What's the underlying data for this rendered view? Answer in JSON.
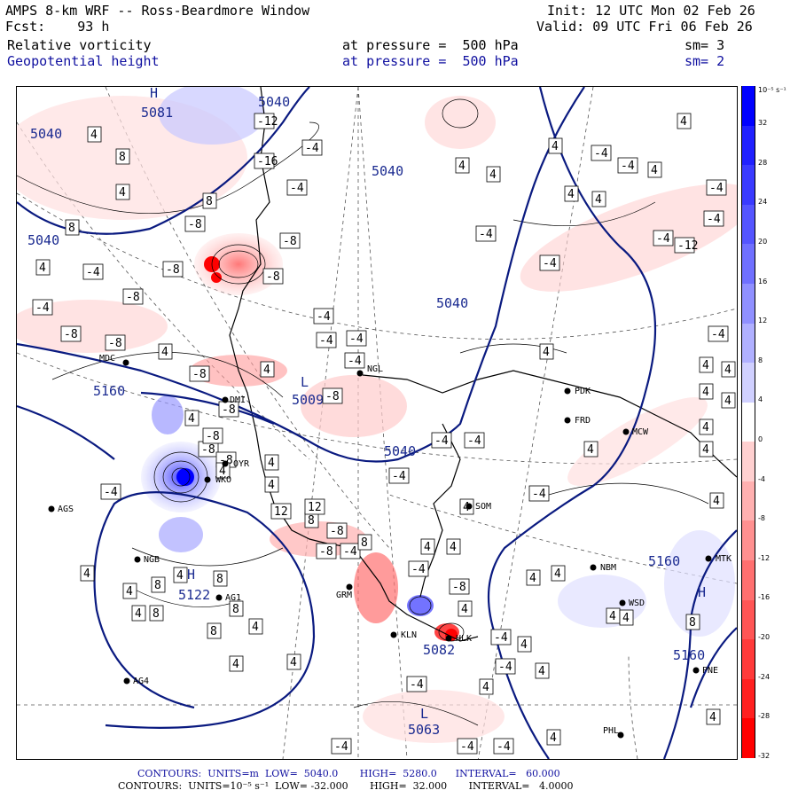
{
  "header": {
    "line1_left": "AMPS 8-km WRF -- Ross-Beardmore Window",
    "line1_right": "Init: 12 UTC Mon 02 Feb 26",
    "line2_left": "Fcst:    93 h",
    "line2_right": "Valid: 09 UTC Fri 06 Feb 26",
    "field1": "Relative vorticity",
    "field1_level": "at pressure =  500 hPa",
    "field1_sm": "sm= 3",
    "field2": "Geopotential height",
    "field2_level": "at pressure =  500 hPa",
    "field2_sm": "sm= 2"
  },
  "colorbar": {
    "unit": "10⁻⁵ s⁻¹",
    "ticks": [
      "32",
      "28",
      "24",
      "20",
      "16",
      "12",
      "8",
      "4",
      "0",
      "-4",
      "-8",
      "-12",
      "-16",
      "-20",
      "-24",
      "-28",
      "-32"
    ],
    "colors": [
      "#0000ff",
      "#2020ff",
      "#3a3aff",
      "#5555ff",
      "#7070ff",
      "#9090ff",
      "#b0b0ff",
      "#d0d0ff",
      "#ffffff",
      "#ffd0d0",
      "#ffb0b0",
      "#ff9090",
      "#ff7070",
      "#ff5555",
      "#ff3a3a",
      "#ff2020",
      "#ff0000"
    ]
  },
  "stations": [
    {
      "id": "MDC"
    },
    {
      "id": "NGL"
    },
    {
      "id": "PDK"
    },
    {
      "id": "FRD"
    },
    {
      "id": "MCW"
    },
    {
      "id": "AGS"
    },
    {
      "id": "NGB"
    },
    {
      "id": "DMI"
    },
    {
      "id": "SOM"
    },
    {
      "id": "AG1"
    },
    {
      "id": "GRM"
    },
    {
      "id": "KLN"
    },
    {
      "id": "HLK"
    },
    {
      "id": "NBM"
    },
    {
      "id": "MTK"
    },
    {
      "id": "WSD"
    },
    {
      "id": "AG4"
    },
    {
      "id": "PNE"
    },
    {
      "id": "PHL"
    },
    {
      "id": "WKO"
    },
    {
      "id": "OYR"
    }
  ],
  "height_labels": [
    "5081",
    "5040",
    "5040",
    "5040",
    "5040",
    "5009",
    "5040",
    "5040",
    "5122",
    "5082",
    "5160",
    "5160",
    "5063",
    "5160"
  ],
  "highs_lows": [
    "H",
    "L",
    "H",
    "L",
    "H"
  ],
  "footer": {
    "line1": "CONTOURS:  UNITS=m  LOW=  5040.0       HIGH=  5280.0      INTERVAL=   60.000",
    "line2": "CONTOURS:  UNITS=10⁻⁵ s⁻¹  LOW= -32.000       HIGH=  32.000       INTERVAL=   4.0000"
  },
  "colors": {
    "height_contour": "#0a1a80",
    "label_blue": "#1010a0"
  }
}
